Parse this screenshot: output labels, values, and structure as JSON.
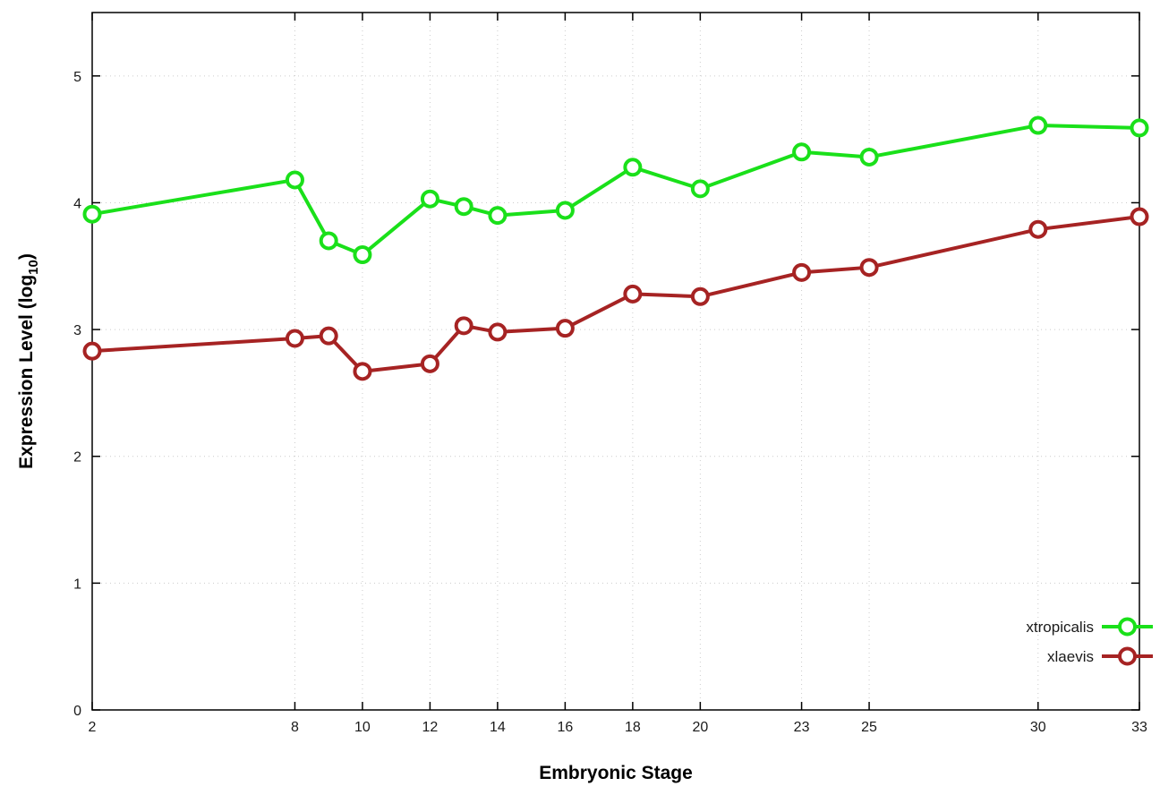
{
  "chart_data": {
    "type": "line",
    "x": [
      2,
      8,
      9,
      10,
      12,
      13,
      14,
      16,
      18,
      20,
      23,
      25,
      30,
      33
    ],
    "series": [
      {
        "name": "xtropicalis",
        "color": "#1ae01a",
        "values": [
          3.91,
          4.18,
          3.7,
          3.59,
          4.03,
          3.97,
          3.9,
          3.94,
          4.28,
          4.11,
          4.4,
          4.36,
          4.61,
          4.59
        ]
      },
      {
        "name": "xlaevis",
        "color": "#a62323",
        "values": [
          2.83,
          2.93,
          2.95,
          2.67,
          2.73,
          3.03,
          2.98,
          3.01,
          3.28,
          3.26,
          3.45,
          3.49,
          3.79,
          3.89
        ]
      }
    ],
    "xlabel": "Embryonic Stage",
    "ylabel_main": "Expression Level (log",
    "ylabel_sub": "10",
    "ylabel_close": ")",
    "xticks": [
      2,
      8,
      10,
      12,
      14,
      16,
      18,
      20,
      23,
      25,
      30,
      33
    ],
    "yticks": [
      0,
      1,
      2,
      3,
      4,
      5
    ],
    "xlim": [
      2,
      33
    ],
    "ylim": [
      0,
      5.5
    ],
    "grid": true,
    "grid_color": "#cccccc",
    "border_color": "#000000",
    "background": "#ffffff",
    "marker": "open-circle",
    "legend_position": "bottom-right"
  }
}
